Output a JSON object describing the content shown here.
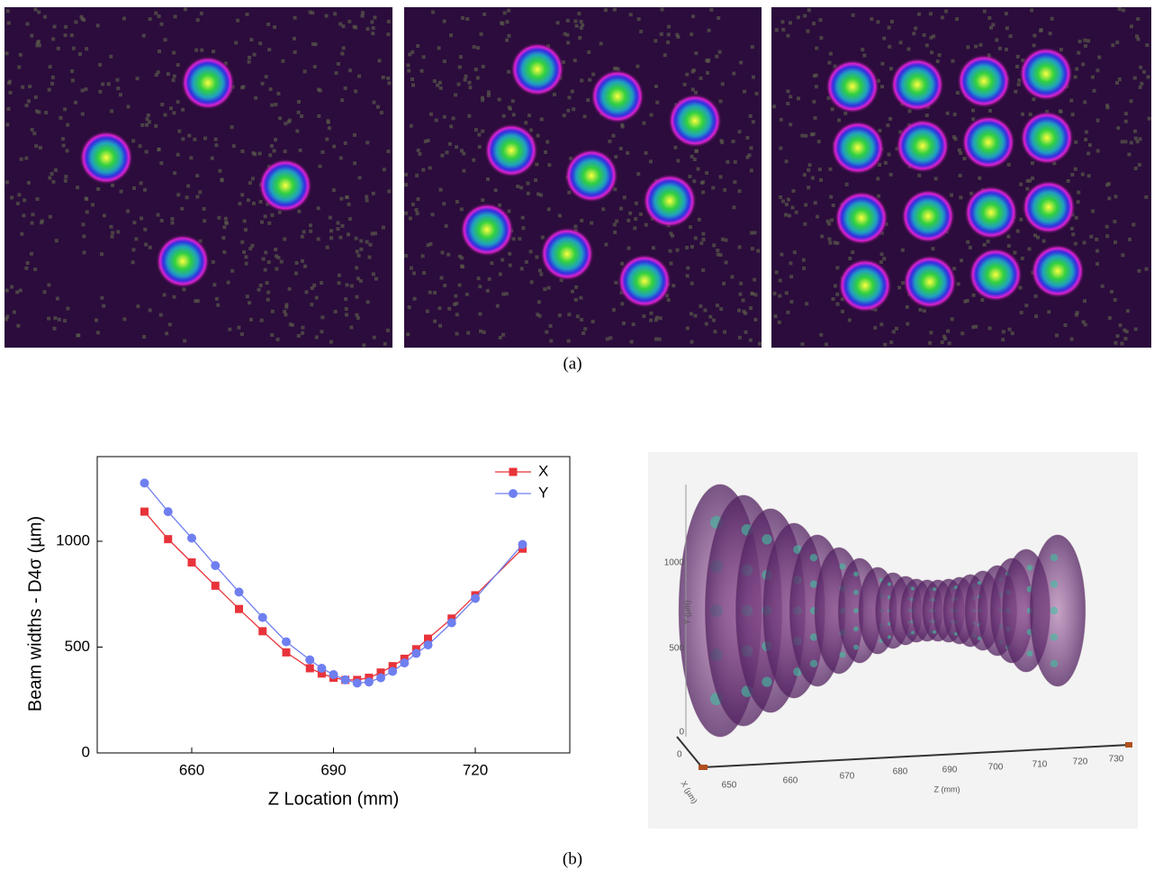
{
  "panel_a": {
    "caption": "(a)"
  },
  "chart_data": {
    "type": "line",
    "x_label": "Z Location (mm)",
    "y_label": "Beam widths - D4σ (µm)",
    "x": [
      650,
      655,
      660,
      665,
      670,
      675,
      680,
      685,
      687.5,
      690,
      692.5,
      695,
      697.5,
      700,
      702.5,
      705,
      707.5,
      710,
      715,
      720,
      730
    ],
    "series": [
      {
        "name": "X",
        "color": "#e8333a",
        "marker": "square",
        "values": [
          1140,
          1010,
          900,
          790,
          680,
          575,
          475,
          400,
          375,
          355,
          345,
          345,
          355,
          380,
          410,
          445,
          490,
          540,
          635,
          745,
          965
        ]
      },
      {
        "name": "Y",
        "color": "#6f7ff0",
        "marker": "circle",
        "values": [
          1275,
          1140,
          1015,
          885,
          760,
          640,
          525,
          440,
          400,
          370,
          345,
          330,
          335,
          355,
          385,
          425,
          470,
          510,
          615,
          730,
          985
        ]
      }
    ],
    "xlim": [
      640,
      740
    ],
    "ylim": [
      0,
      1400
    ],
    "xticks": [
      660,
      690,
      720
    ],
    "yticks": [
      0,
      500,
      1000
    ],
    "legend": "upper right"
  },
  "panel_b": {
    "caption": "(b)",
    "render": {
      "y_axis_label": "Y (µm)",
      "x_axis_label": "X (µm)",
      "z_axis_label": "Z (mm)",
      "y_ticks": [
        1000,
        500,
        0
      ],
      "x_ticks": [
        0
      ],
      "z_ticks": [
        650,
        660,
        670,
        680,
        690,
        700,
        710,
        720,
        730
      ]
    }
  }
}
